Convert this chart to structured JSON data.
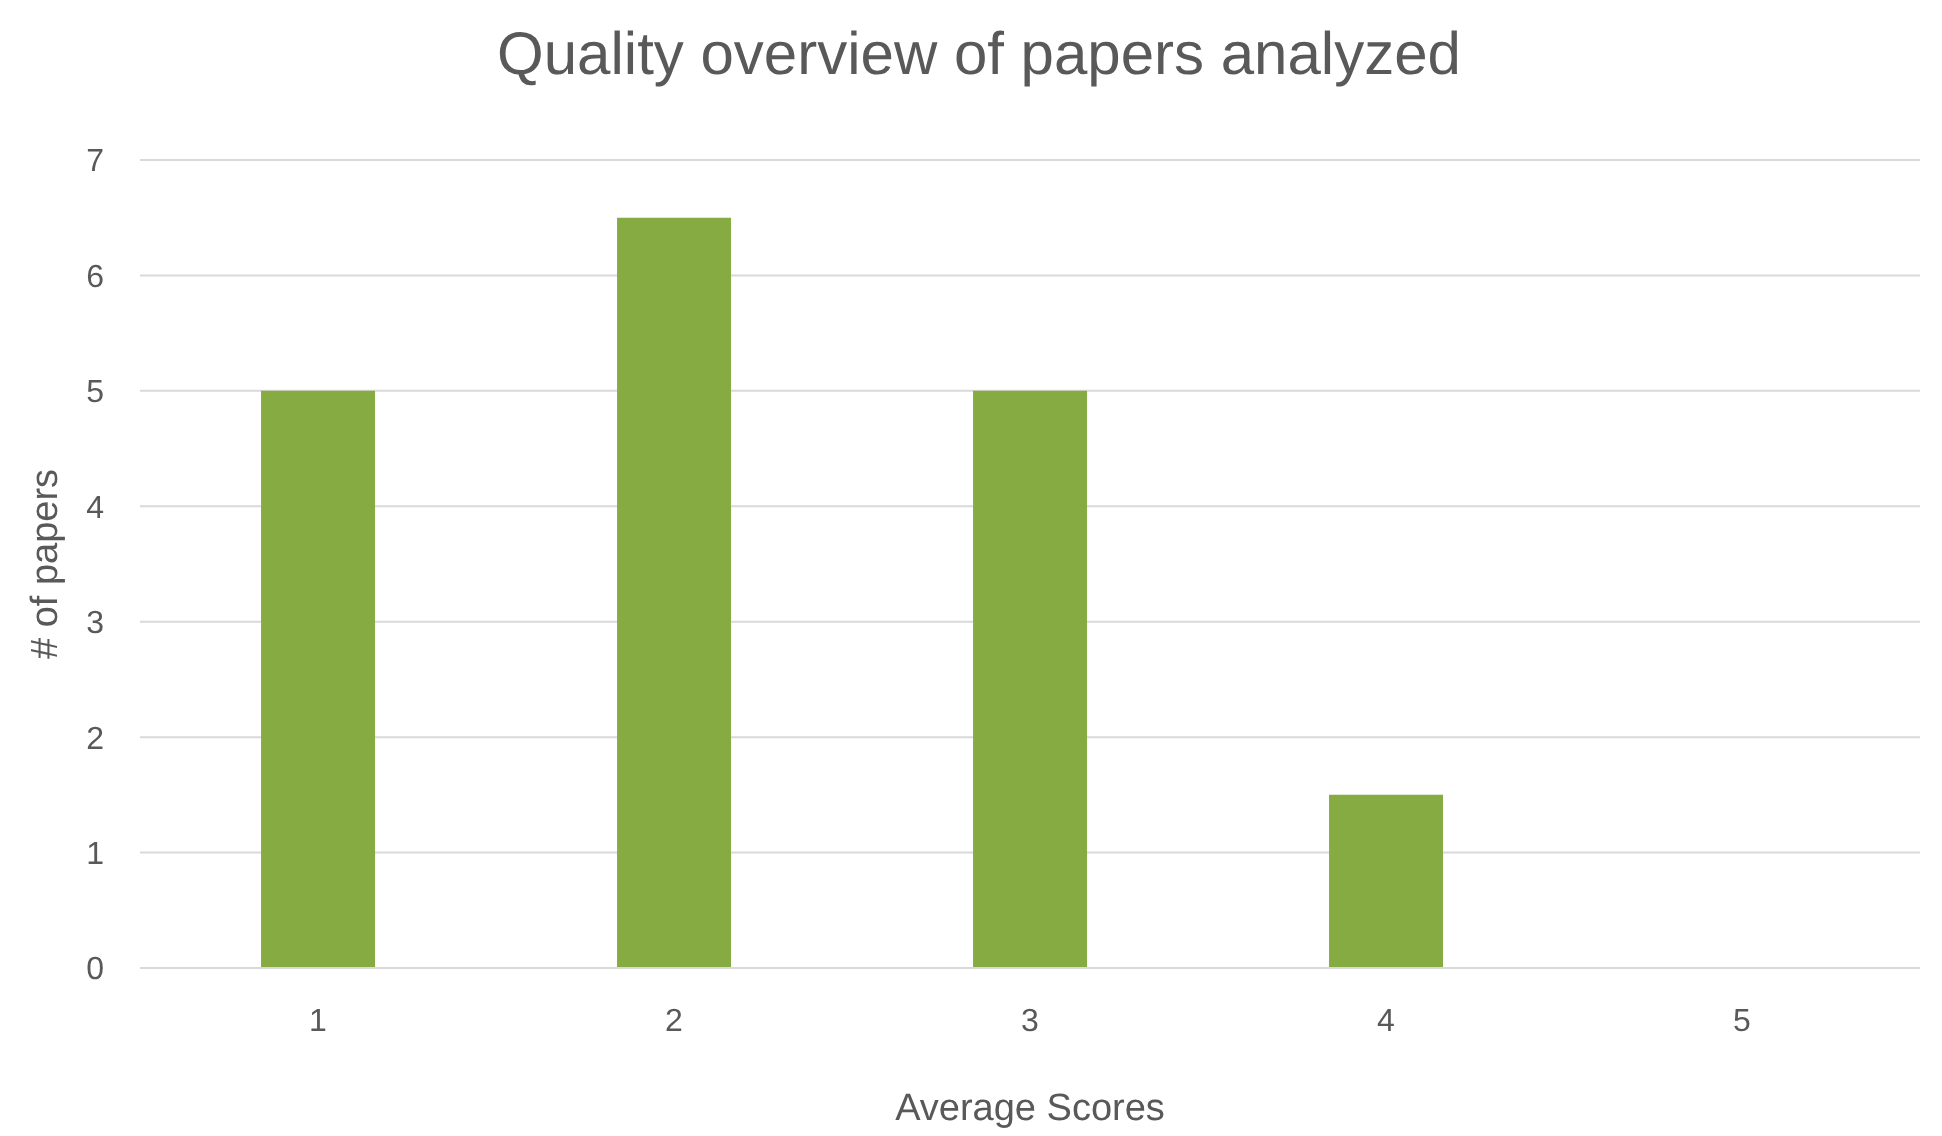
{
  "chart_data": {
    "type": "bar",
    "title": "Quality overview of papers analyzed",
    "xlabel": "Average Scores",
    "ylabel": "# of papers",
    "categories": [
      "1",
      "2",
      "3",
      "4",
      "5"
    ],
    "values": [
      5,
      6.5,
      5,
      1.5,
      0
    ],
    "color": "#86ab42",
    "ylim": [
      0,
      7
    ],
    "yticks": [
      0,
      1,
      2,
      3,
      4,
      5,
      6,
      7
    ],
    "grid": "y"
  }
}
